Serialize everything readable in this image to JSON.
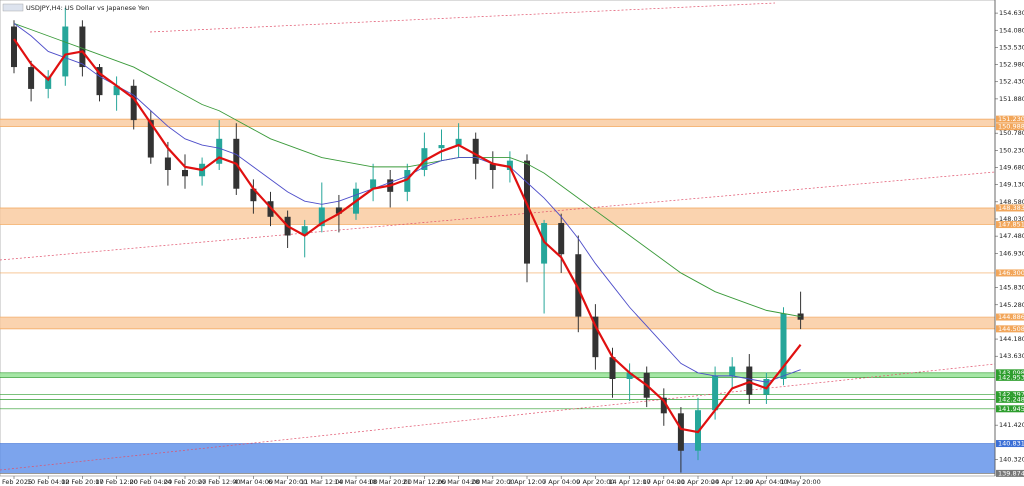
{
  "chart_data": {
    "type": "candlestick",
    "title": "USDJPY,H4: US Dollar vs Japanese Yen",
    "categories": [
      "5 Feb 2025",
      null,
      "10 Feb 04:00",
      null,
      "12 Feb 20:00",
      null,
      "17 Feb 12:00",
      null,
      "20 Feb 04:00",
      null,
      "24 Feb 20:00",
      null,
      "27 Feb 12:00",
      null,
      "4 Mar 04:00",
      null,
      "6 Mar 20:00",
      null,
      "11 Mar 12:00",
      null,
      "14 Mar 04:00",
      null,
      "18 Mar 20:00",
      null,
      "21 Mar 12:00",
      null,
      "26 Mar 04:00",
      null,
      "28 Mar 20:00",
      null,
      "2 Apr 12:00",
      null,
      "7 Apr 04:00",
      null,
      "9 Apr 20:00",
      null,
      "14 Apr 12:00",
      null,
      "17 Apr 04:00",
      null,
      "21 Apr 20:00",
      null,
      "24 Apr 12:00",
      null,
      "29 Apr 04:00",
      null,
      "1 May 20:00"
    ],
    "open": [
      154.2,
      152.9,
      152.2,
      152.6,
      154.2,
      152.9,
      152.0,
      152.3,
      151.2,
      150.0,
      149.6,
      149.4,
      149.8,
      150.6,
      149.0,
      148.6,
      148.1,
      147.5,
      147.8,
      148.4,
      148.2,
      149.0,
      149.3,
      148.9,
      149.6,
      150.3,
      150.4,
      150.6,
      149.8,
      149.6,
      149.9,
      146.6,
      147.9,
      146.9,
      144.9,
      143.6,
      142.9,
      143.1,
      142.3,
      141.8,
      140.6,
      141.9,
      143.0,
      143.3,
      142.4,
      142.9,
      145.0
    ],
    "high": [
      154.4,
      153.1,
      152.8,
      154.8,
      154.4,
      153.0,
      152.6,
      152.5,
      151.5,
      150.5,
      150.1,
      150.0,
      151.2,
      151.1,
      149.3,
      148.9,
      148.3,
      148.0,
      149.2,
      148.8,
      149.2,
      149.8,
      149.6,
      149.8,
      150.8,
      150.9,
      151.1,
      150.8,
      150.2,
      150.2,
      150.1,
      148.0,
      148.2,
      147.5,
      145.3,
      143.9,
      143.4,
      143.3,
      142.6,
      142.0,
      142.3,
      143.3,
      143.6,
      143.7,
      143.1,
      145.2,
      145.7
    ],
    "low": [
      152.7,
      151.8,
      151.9,
      152.3,
      152.6,
      151.8,
      151.5,
      150.9,
      149.8,
      149.1,
      149.0,
      149.1,
      149.6,
      148.8,
      148.2,
      147.8,
      147.1,
      146.8,
      147.6,
      147.6,
      148.0,
      148.6,
      148.4,
      148.6,
      149.4,
      149.9,
      150.0,
      149.3,
      149.0,
      149.2,
      146.0,
      145.0,
      146.3,
      144.4,
      143.2,
      142.3,
      142.2,
      142.0,
      141.4,
      139.9,
      140.3,
      141.6,
      142.6,
      142.1,
      142.1,
      142.7,
      144.5
    ],
    "close": [
      152.9,
      152.2,
      152.6,
      154.2,
      152.9,
      152.0,
      152.3,
      151.2,
      150.0,
      149.6,
      149.4,
      149.8,
      150.6,
      149.0,
      148.6,
      148.1,
      147.5,
      147.8,
      148.4,
      148.2,
      149.0,
      149.3,
      148.9,
      149.6,
      150.3,
      150.4,
      150.6,
      149.8,
      149.6,
      149.9,
      146.6,
      147.9,
      146.9,
      144.9,
      143.6,
      142.9,
      143.1,
      142.3,
      141.8,
      140.6,
      141.9,
      143.0,
      143.3,
      142.4,
      142.9,
      145.0,
      144.8
    ],
    "up_color": "#26a69a",
    "down_color": "#333333",
    "series": [
      {
        "color": "#3a9a3a",
        "values": [
          154.3,
          154.1,
          153.9,
          153.7,
          153.5,
          153.3,
          153.1,
          152.9,
          152.6,
          152.3,
          152.0,
          151.7,
          151.5,
          151.2,
          150.9,
          150.6,
          150.4,
          150.2,
          150.0,
          149.9,
          149.8,
          149.7,
          149.7,
          149.7,
          149.8,
          149.9,
          150.0,
          150.0,
          150.0,
          150.0,
          149.8,
          149.5,
          149.1,
          148.7,
          148.3,
          147.9,
          147.5,
          147.1,
          146.7,
          146.3,
          146.0,
          145.7,
          145.5,
          145.3,
          145.1,
          145.0,
          144.9
        ]
      },
      {
        "color": "#4d4dc9",
        "values": [
          154.3,
          153.9,
          153.4,
          153.2,
          153.0,
          152.6,
          152.3,
          152.0,
          151.5,
          151.0,
          150.6,
          150.4,
          150.3,
          150.1,
          149.7,
          149.3,
          148.9,
          148.6,
          148.5,
          148.6,
          148.8,
          149.0,
          149.2,
          149.4,
          149.7,
          149.9,
          150.0,
          150.0,
          149.8,
          149.7,
          149.2,
          148.7,
          148.1,
          147.4,
          146.6,
          145.9,
          145.2,
          144.6,
          144.0,
          143.4,
          143.1,
          143.0,
          143.0,
          142.9,
          142.8,
          143.0,
          143.2
        ]
      },
      {
        "color": "#e01010",
        "values": [
          153.8,
          153.0,
          152.5,
          153.3,
          153.4,
          152.7,
          152.3,
          151.9,
          151.1,
          150.3,
          149.7,
          149.6,
          150.0,
          149.8,
          149.0,
          148.4,
          147.8,
          147.5,
          147.9,
          148.2,
          148.6,
          149.0,
          149.1,
          149.3,
          149.9,
          150.2,
          150.4,
          150.1,
          149.8,
          149.7,
          148.5,
          147.3,
          146.8,
          145.8,
          144.6,
          143.6,
          143.1,
          142.7,
          142.2,
          141.3,
          141.2,
          141.9,
          142.6,
          142.8,
          142.6,
          143.3,
          144.0
        ]
      }
    ],
    "zones": [
      {
        "from": 150.988,
        "to": 151.23,
        "color": "#f9c89b"
      },
      {
        "from": 147.851,
        "to": 148.383,
        "color": "#f9c89b"
      },
      {
        "from": 144.508,
        "to": 144.886,
        "color": "#f9c89b"
      },
      {
        "from": 142.953,
        "to": 143.098,
        "color": "#8fe08f"
      },
      {
        "from": 139.874,
        "to": 140.831,
        "color": "#5b8de8"
      }
    ],
    "levels": [
      {
        "value": 151.23,
        "label": "151.230",
        "color": "#f2a65a"
      },
      {
        "value": 150.988,
        "label": "150.988",
        "color": "#f2a65a"
      },
      {
        "value": 148.383,
        "label": "148.383",
        "color": "#f2a65a"
      },
      {
        "value": 147.851,
        "label": "147.851",
        "color": "#f2a65a"
      },
      {
        "value": 146.3,
        "label": "146.300",
        "color": "#f2a65a"
      },
      {
        "value": 144.886,
        "label": "144.886",
        "color": "#f2a65a"
      },
      {
        "value": 144.508,
        "label": "144.508",
        "color": "#f2a65a"
      },
      {
        "value": 143.098,
        "label": "143.098",
        "color": "#2e9e2e"
      },
      {
        "value": 142.953,
        "label": "142.953",
        "color": "#2e9e2e"
      },
      {
        "value": 142.397,
        "label": "142.397",
        "color": "#2e9e2e"
      },
      {
        "value": 142.248,
        "label": "142.248",
        "color": "#2e9e2e"
      },
      {
        "value": 141.945,
        "label": "141.945",
        "color": "#2e9e2e"
      },
      {
        "value": 140.831,
        "label": "140.831",
        "color": "#3b6fd6"
      },
      {
        "value": 139.874,
        "label": "139.874",
        "color": "#777777"
      }
    ],
    "ylim": [
      139.47,
      155.05
    ],
    "yticks": [
      {
        "value": 154.63,
        "label": "154.630"
      },
      {
        "value": 154.08,
        "label": "154.080"
      },
      {
        "value": 153.53,
        "label": "153.530"
      },
      {
        "value": 152.98,
        "label": "152.980"
      },
      {
        "value": 152.43,
        "label": "152.430"
      },
      {
        "value": 151.88,
        "label": "151.880"
      },
      {
        "value": 150.78,
        "label": "150.780"
      },
      {
        "value": 150.23,
        "label": "150.230"
      },
      {
        "value": 149.68,
        "label": "149.680"
      },
      {
        "value": 149.13,
        "label": "149.130"
      },
      {
        "value": 148.58,
        "label": "148.580"
      },
      {
        "value": 148.03,
        "label": "148.030"
      },
      {
        "value": 147.48,
        "label": "147.480"
      },
      {
        "value": 146.93,
        "label": "146.930"
      },
      {
        "value": 145.83,
        "label": "145.830"
      },
      {
        "value": 145.28,
        "label": "145.280"
      },
      {
        "value": 144.18,
        "label": "144.180"
      },
      {
        "value": 143.63,
        "label": "143.630"
      },
      {
        "value": 141.42,
        "label": "141.420"
      },
      {
        "value": 140.32,
        "label": "140.320"
      }
    ]
  }
}
